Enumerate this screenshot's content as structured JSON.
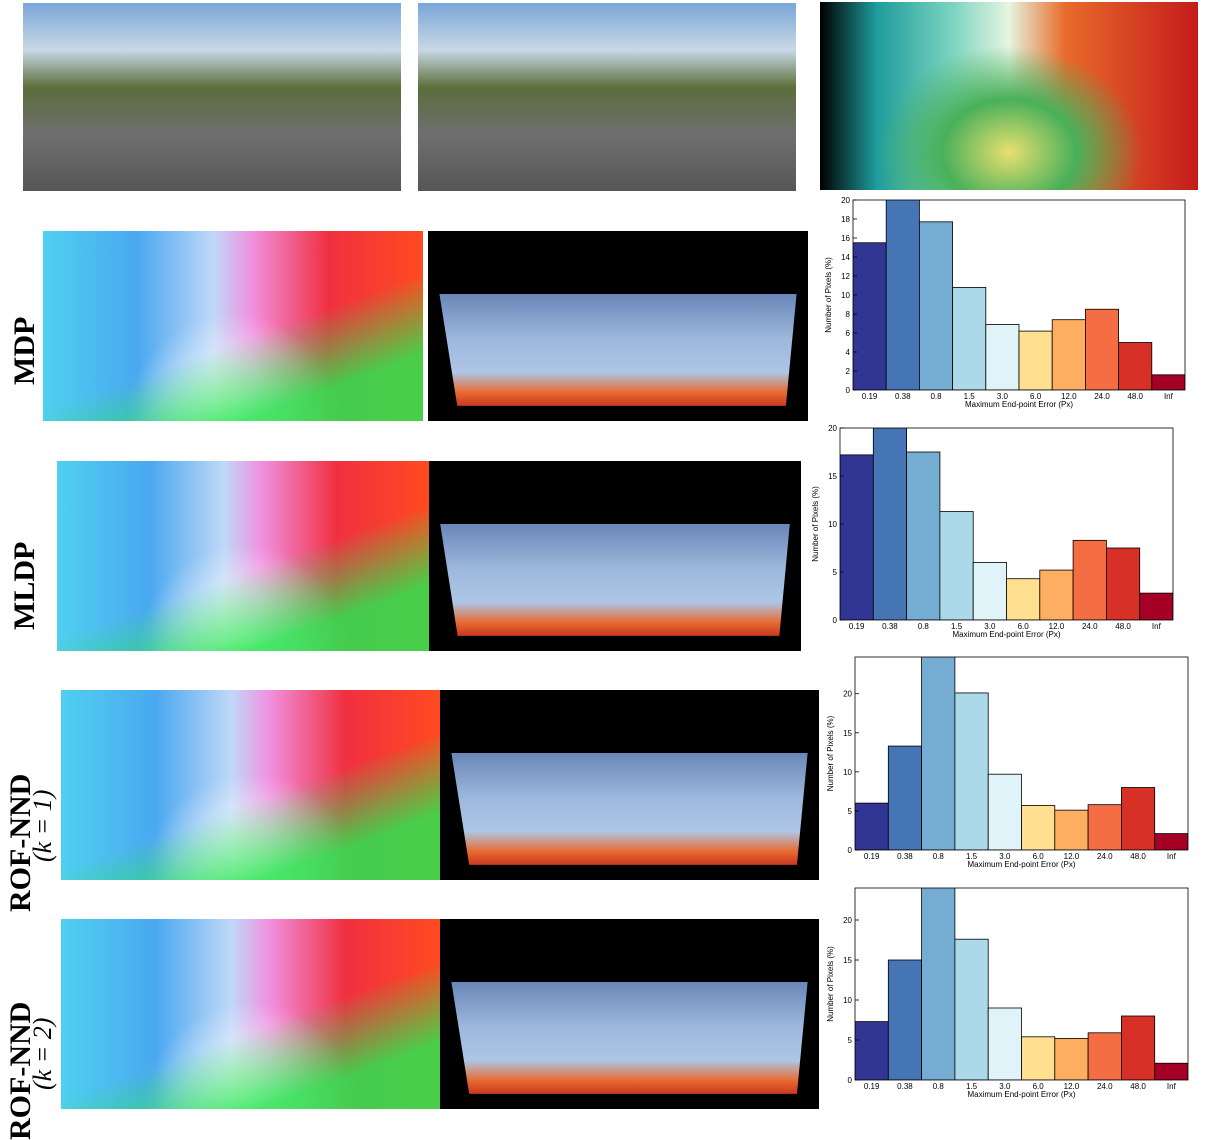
{
  "rows": [
    {
      "label": "MDP"
    },
    {
      "label": "MLDP"
    },
    {
      "label": "ROF-NND",
      "sub": "(k = 1)"
    },
    {
      "label": "ROF-NND",
      "sub": "(k = 2)"
    }
  ],
  "chart_data": [
    {
      "type": "bar",
      "categories": [
        "0.19",
        "0.38",
        "0.8",
        "1.5",
        "3.0",
        "6.0",
        "12.0",
        "24.0",
        "48.0",
        "Inf"
      ],
      "values": [
        15.5,
        20.3,
        17.7,
        10.8,
        6.9,
        6.2,
        7.4,
        8.5,
        5.0,
        1.6
      ],
      "colors": [
        "#313695",
        "#4575b4",
        "#74add1",
        "#abd9e9",
        "#e0f3f8",
        "#fee090",
        "#fdae61",
        "#f46d43",
        "#d73027",
        "#a50026"
      ],
      "ylim": [
        0,
        20
      ],
      "yticks": [
        0,
        2,
        4,
        6,
        8,
        10,
        12,
        14,
        16,
        18,
        20
      ],
      "xlabel": "Maximum End-point Error (Px)",
      "ylabel": "Number of Pixels (%)"
    },
    {
      "type": "bar",
      "categories": [
        "0.19",
        "0.38",
        "0.8",
        "1.5",
        "3.0",
        "6.0",
        "12.0",
        "24.0",
        "48.0",
        "Inf"
      ],
      "values": [
        17.2,
        20.2,
        17.5,
        11.3,
        6.0,
        4.3,
        5.2,
        8.3,
        7.5,
        2.8
      ],
      "colors": [
        "#313695",
        "#4575b4",
        "#74add1",
        "#abd9e9",
        "#e0f3f8",
        "#fee090",
        "#fdae61",
        "#f46d43",
        "#d73027",
        "#a50026"
      ],
      "ylim": [
        0,
        20
      ],
      "yticks": [
        0,
        5,
        10,
        15,
        20
      ],
      "xlabel": "Maximum End-point Error (Px)",
      "ylabel": "Number of Pixels (%)"
    },
    {
      "type": "bar",
      "categories": [
        "0.19",
        "0.38",
        "0.8",
        "1.5",
        "3.0",
        "6.0",
        "12.0",
        "24.0",
        "48.0",
        "Inf"
      ],
      "values": [
        6.0,
        13.3,
        25.5,
        20.1,
        9.7,
        5.7,
        5.1,
        5.8,
        8.0,
        2.1
      ],
      "colors": [
        "#313695",
        "#4575b4",
        "#74add1",
        "#abd9e9",
        "#e0f3f8",
        "#fee090",
        "#fdae61",
        "#f46d43",
        "#d73027",
        "#a50026"
      ],
      "ylim": [
        0,
        24.7
      ],
      "yticks": [
        0,
        5,
        10,
        15,
        20
      ],
      "xlabel": "Maximum End-point Error (Px)",
      "ylabel": "Number of Pixels (%)"
    },
    {
      "type": "bar",
      "categories": [
        "0.19",
        "0.38",
        "0.8",
        "1.5",
        "3.0",
        "6.0",
        "12.0",
        "24.0",
        "48.0",
        "Inf"
      ],
      "values": [
        7.3,
        15.0,
        25.0,
        17.6,
        9.0,
        5.4,
        5.2,
        5.9,
        8.0,
        2.1
      ],
      "colors": [
        "#313695",
        "#4575b4",
        "#74add1",
        "#abd9e9",
        "#e0f3f8",
        "#fee090",
        "#fdae61",
        "#f46d43",
        "#d73027",
        "#a50026"
      ],
      "ylim": [
        0,
        24
      ],
      "yticks": [
        0,
        5,
        10,
        15,
        20
      ],
      "xlabel": "Maximum End-point Error (Px)",
      "ylabel": "Number of Pixels (%)"
    }
  ]
}
